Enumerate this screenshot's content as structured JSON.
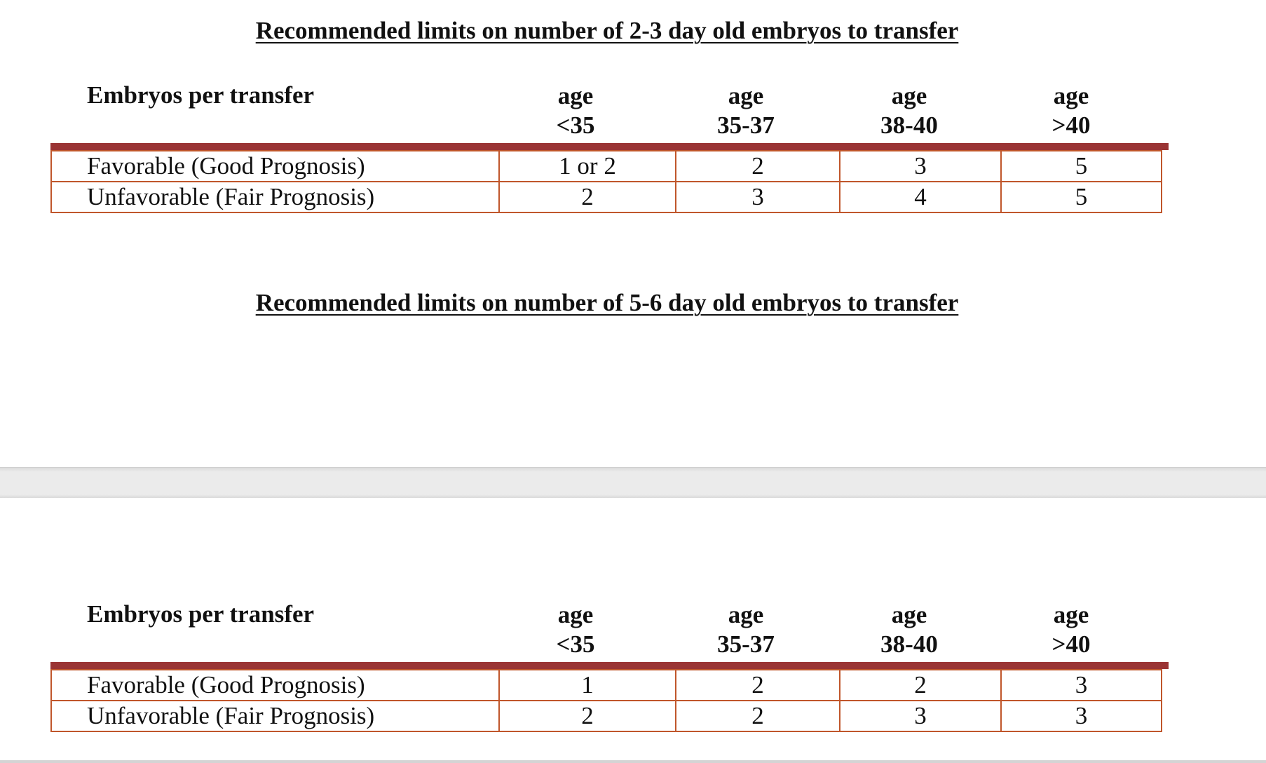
{
  "document": {
    "sections": [
      {
        "title": "Recommended limits on number of 2-3 day old embryos to transfer",
        "row_header": "Embryos per transfer",
        "columns": [
          {
            "line1": "age",
            "line2": "<35"
          },
          {
            "line1": "age",
            "line2": "35-37"
          },
          {
            "line1": "age",
            "line2": "38-40"
          },
          {
            "line1": "age",
            "line2": ">40"
          }
        ],
        "rows": [
          {
            "label": "Favorable (Good Prognosis)",
            "values": [
              "1 or 2",
              "2",
              "3",
              "5"
            ]
          },
          {
            "label": "Unfavorable (Fair Prognosis)",
            "values": [
              "2",
              "3",
              "4",
              "5"
            ]
          }
        ]
      },
      {
        "title": "Recommended limits on number of 5-6 day old embryos to transfer",
        "row_header": "Embryos per transfer",
        "columns": [
          {
            "line1": "age",
            "line2": "<35"
          },
          {
            "line1": "age",
            "line2": "35-37"
          },
          {
            "line1": "age",
            "line2": "38-40"
          },
          {
            "line1": "age",
            "line2": ">40"
          }
        ],
        "rows": [
          {
            "label": "Favorable (Good Prognosis)",
            "values": [
              "1",
              "2",
              "2",
              "3"
            ]
          },
          {
            "label": "Unfavorable (Fair Prognosis)",
            "values": [
              "2",
              "2",
              "3",
              "3"
            ]
          }
        ]
      }
    ],
    "colors": {
      "accent_bar": "#9a3434",
      "table_border": "#c0562b"
    }
  }
}
